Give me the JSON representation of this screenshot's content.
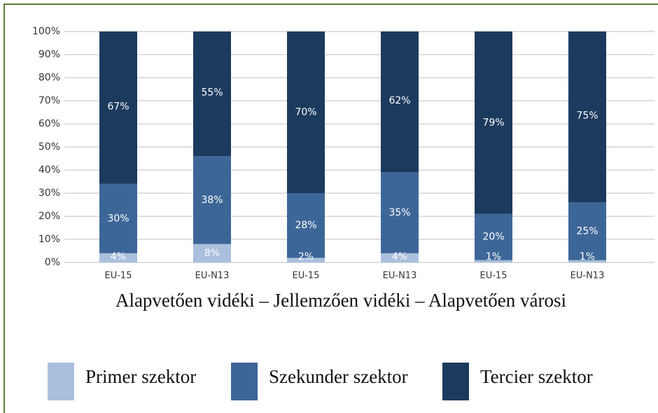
{
  "chart_data": {
    "type": "stacked_bar",
    "xlabel": "Alapvetően vidéki – Jellemzően vidéki – Alapvetően városi",
    "categories": [
      "EU-15",
      "EU-N13",
      "EU-15",
      "EU-N13",
      "EU-15",
      "EU-N13"
    ],
    "series": [
      {
        "name": "Primer szektor",
        "color": "#a9c0dd",
        "values": [
          4,
          8,
          2,
          4,
          1,
          1
        ],
        "value_labels": [
          "4%",
          "8%",
          "2%",
          "4%",
          "1%",
          "1%"
        ]
      },
      {
        "name": "Szekunder szektor",
        "color": "#3d6698",
        "values": [
          30,
          38,
          28,
          35,
          20,
          25
        ],
        "value_labels": [
          "30%",
          "38%",
          "28%",
          "35%",
          "20%",
          "25%"
        ]
      },
      {
        "name": "Tercier szektor",
        "color": "#1c3a5e",
        "values": [
          67,
          55,
          70,
          62,
          79,
          75
        ],
        "value_labels": [
          "67%",
          "55%",
          "70%",
          "62%",
          "79%",
          "75%"
        ]
      }
    ],
    "ylim": [
      0,
      100
    ],
    "yticks": [
      {
        "value": 0,
        "label": "0%"
      },
      {
        "value": 10,
        "label": "10%"
      },
      {
        "value": 20,
        "label": "20%"
      },
      {
        "value": 30,
        "label": "30%"
      },
      {
        "value": 40,
        "label": "40%"
      },
      {
        "value": 50,
        "label": "50%"
      },
      {
        "value": 60,
        "label": "60%"
      },
      {
        "value": 70,
        "label": "70%"
      },
      {
        "value": 80,
        "label": "80%"
      },
      {
        "value": 90,
        "label": "90%"
      },
      {
        "value": 100,
        "label": "100%"
      }
    ],
    "grid": true,
    "legend": "bottom"
  }
}
